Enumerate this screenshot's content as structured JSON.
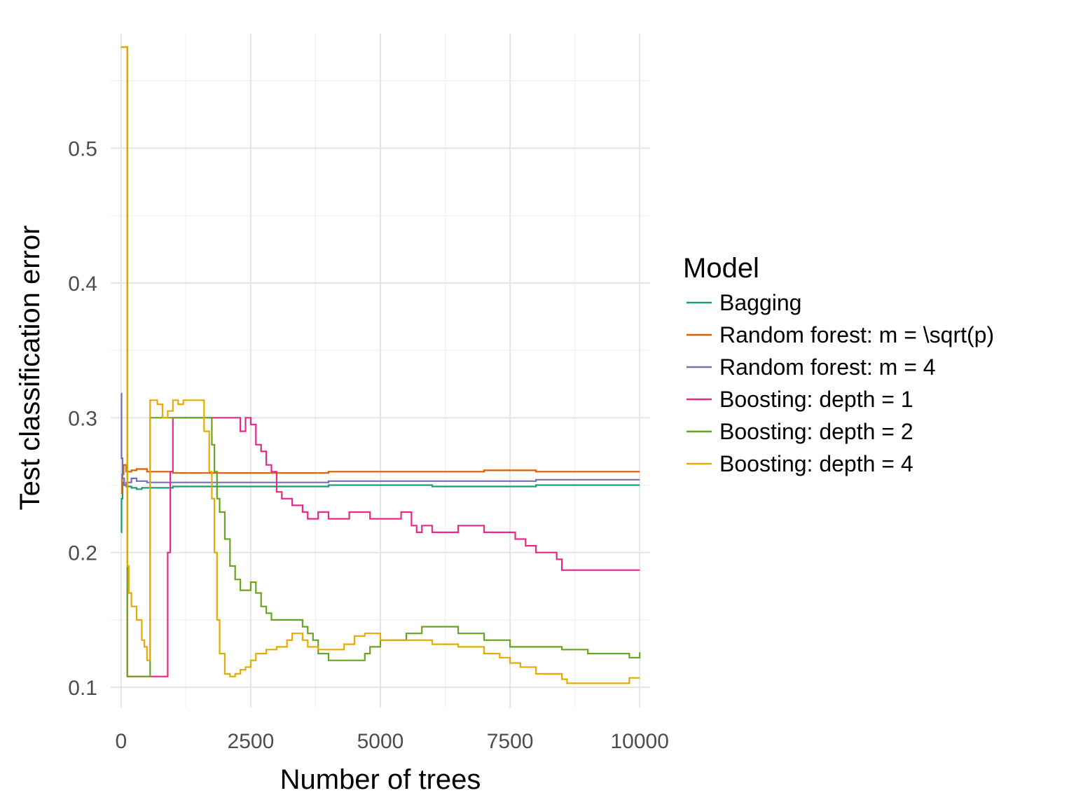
{
  "chart_data": {
    "type": "line",
    "xlabel": "Number of trees",
    "ylabel": "Test classification error",
    "xlim": [
      -200,
      10200
    ],
    "ylim": [
      0.085,
      0.585
    ],
    "x_ticks": [
      0,
      2500,
      5000,
      7500,
      10000
    ],
    "x_tick_labels": [
      "0",
      "2500",
      "5000",
      "7500",
      "10000"
    ],
    "y_ticks": [
      0.1,
      0.2,
      0.3,
      0.4,
      0.5
    ],
    "y_tick_labels": [
      "0.1",
      "0.2",
      "0.3",
      "0.4",
      "0.5"
    ],
    "grid": true,
    "legend_title": "Model",
    "legend_position": "right",
    "series": [
      {
        "name": "Bagging",
        "color": "#1b9e77",
        "x": [
          1,
          10,
          30,
          60,
          100,
          200,
          300,
          400,
          600,
          1000,
          2000,
          4000,
          6000,
          8000,
          10000
        ],
        "y": [
          0.215,
          0.24,
          0.252,
          0.25,
          0.249,
          0.248,
          0.247,
          0.248,
          0.248,
          0.249,
          0.249,
          0.25,
          0.249,
          0.25,
          0.25
        ]
      },
      {
        "name": "Random forest: m = \\sqrt(p)",
        "color": "#d95f02",
        "x": [
          1,
          20,
          50,
          100,
          200,
          300,
          500,
          1000,
          2000,
          3000,
          4000,
          6000,
          7000,
          8000,
          10000
        ],
        "y": [
          0.244,
          0.258,
          0.265,
          0.26,
          0.261,
          0.262,
          0.26,
          0.259,
          0.259,
          0.259,
          0.26,
          0.26,
          0.261,
          0.26,
          0.26
        ]
      },
      {
        "name": "Random forest: m = 4",
        "color": "#7570b3",
        "x": [
          1,
          10,
          30,
          60,
          100,
          200,
          300,
          500,
          1000,
          2000,
          4000,
          6000,
          8000,
          10000
        ],
        "y": [
          0.318,
          0.27,
          0.255,
          0.25,
          0.252,
          0.255,
          0.253,
          0.252,
          0.252,
          0.252,
          0.253,
          0.253,
          0.254,
          0.254
        ]
      },
      {
        "name": "Boosting: depth = 1",
        "color": "#e7298a",
        "x": [
          1,
          60,
          100,
          120,
          600,
          850,
          900,
          950,
          1000,
          1100,
          1200,
          1700,
          1800,
          2100,
          2200,
          2300,
          2400,
          2500,
          2600,
          2700,
          2800,
          2900,
          3000,
          3100,
          3300,
          3500,
          3600,
          3800,
          4000,
          4400,
          4800,
          5000,
          5300,
          5400,
          5600,
          5700,
          5800,
          6000,
          6500,
          7000,
          7300,
          7500,
          7600,
          7800,
          8000,
          8300,
          8400,
          8500,
          9000,
          9500,
          10000
        ],
        "y": [
          0.575,
          0.575,
          0.575,
          0.108,
          0.108,
          0.108,
          0.2,
          0.26,
          0.3,
          0.3,
          0.3,
          0.3,
          0.3,
          0.3,
          0.3,
          0.29,
          0.3,
          0.295,
          0.28,
          0.275,
          0.265,
          0.26,
          0.245,
          0.24,
          0.235,
          0.23,
          0.225,
          0.23,
          0.225,
          0.23,
          0.225,
          0.225,
          0.225,
          0.23,
          0.22,
          0.215,
          0.22,
          0.215,
          0.22,
          0.215,
          0.215,
          0.215,
          0.21,
          0.205,
          0.2,
          0.2,
          0.195,
          0.187,
          0.187,
          0.187,
          0.187
        ]
      },
      {
        "name": "Boosting: depth = 2",
        "color": "#66a61e",
        "x": [
          1,
          60,
          100,
          120,
          540,
          560,
          600,
          1000,
          1500,
          1700,
          1750,
          1800,
          1850,
          1900,
          2000,
          2100,
          2200,
          2300,
          2500,
          2600,
          2700,
          2800,
          2900,
          3000,
          3200,
          3500,
          3600,
          3700,
          3800,
          4000,
          4200,
          4500,
          4700,
          4800,
          5000,
          5500,
          5800,
          6000,
          6500,
          7000,
          7500,
          8000,
          8500,
          9000,
          9500,
          9800,
          10000
        ],
        "y": [
          0.575,
          0.575,
          0.575,
          0.108,
          0.108,
          0.3,
          0.3,
          0.3,
          0.3,
          0.3,
          0.28,
          0.26,
          0.24,
          0.23,
          0.21,
          0.19,
          0.18,
          0.172,
          0.178,
          0.17,
          0.16,
          0.155,
          0.15,
          0.15,
          0.15,
          0.145,
          0.14,
          0.135,
          0.125,
          0.12,
          0.12,
          0.12,
          0.125,
          0.13,
          0.135,
          0.14,
          0.145,
          0.145,
          0.14,
          0.135,
          0.13,
          0.13,
          0.128,
          0.125,
          0.125,
          0.122,
          0.126
        ]
      },
      {
        "name": "Boosting: depth = 4",
        "color": "#e6ab02",
        "x": [
          1,
          60,
          100,
          120,
          150,
          200,
          300,
          400,
          450,
          500,
          540,
          560,
          600,
          700,
          800,
          900,
          1000,
          1100,
          1200,
          1300,
          1400,
          1500,
          1600,
          1700,
          1750,
          1800,
          1850,
          1900,
          2000,
          2100,
          2200,
          2300,
          2400,
          2500,
          2600,
          2800,
          3000,
          3200,
          3300,
          3500,
          3600,
          3800,
          4000,
          4300,
          4500,
          4700,
          5000,
          5500,
          6000,
          6500,
          7000,
          7300,
          7500,
          7700,
          8000,
          8500,
          8600,
          9000,
          9500,
          9800,
          10000
        ],
        "y": [
          0.575,
          0.575,
          0.575,
          0.19,
          0.17,
          0.16,
          0.15,
          0.135,
          0.13,
          0.12,
          0.12,
          0.313,
          0.313,
          0.31,
          0.3,
          0.305,
          0.313,
          0.31,
          0.313,
          0.313,
          0.313,
          0.313,
          0.29,
          0.26,
          0.24,
          0.2,
          0.15,
          0.125,
          0.11,
          0.108,
          0.11,
          0.113,
          0.115,
          0.12,
          0.125,
          0.128,
          0.13,
          0.135,
          0.14,
          0.135,
          0.13,
          0.128,
          0.128,
          0.132,
          0.138,
          0.14,
          0.135,
          0.135,
          0.132,
          0.13,
          0.125,
          0.122,
          0.118,
          0.115,
          0.11,
          0.106,
          0.103,
          0.103,
          0.103,
          0.107,
          0.107
        ]
      }
    ]
  }
}
